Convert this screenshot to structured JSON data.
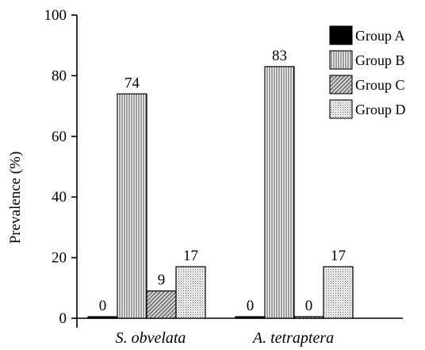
{
  "chart_data": {
    "type": "bar",
    "title": "",
    "xlabel": "",
    "ylabel": "Prevalence (%)",
    "ylim": [
      0,
      100
    ],
    "yticks": [
      0,
      20,
      40,
      60,
      80,
      100
    ],
    "grid": false,
    "legend_position": "top-right",
    "categories": [
      "S. obvelata",
      "A. tetraptera"
    ],
    "series": [
      {
        "name": "Group A",
        "values": [
          0,
          0
        ],
        "pattern": "solid-black"
      },
      {
        "name": "Group B",
        "values": [
          74,
          83
        ],
        "pattern": "vertical-lines"
      },
      {
        "name": "Group C",
        "values": [
          9,
          0
        ],
        "pattern": "diagonal-hatch"
      },
      {
        "name": "Group D",
        "values": [
          17,
          17
        ],
        "pattern": "dots"
      }
    ],
    "data_labels": [
      [
        "0",
        "0"
      ],
      [
        "74",
        "83"
      ],
      [
        "9",
        "0"
      ],
      [
        "17",
        "17"
      ]
    ],
    "colors": {
      "bar_stroke": "#000000",
      "background": "#ffffff"
    }
  }
}
